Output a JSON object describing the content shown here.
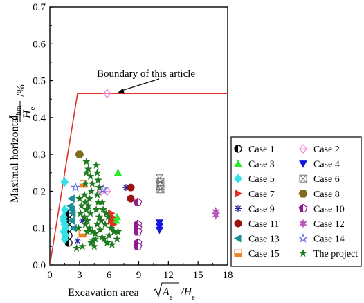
{
  "chart_data": {
    "type": "scatter",
    "title": "",
    "xlabel": "Excavation area √Aₑ/Hₑ",
    "xlabel_main": "Excavation area",
    "xlabel_sqrt_num": "A",
    "xlabel_sqrt_sub": "e",
    "xlabel_den": "H",
    "xlabel_den_sub": "e",
    "ylabel": "Maximal horizontal δhm/He /%",
    "ylabel_main": "Maximal horizontal",
    "ylabel_num": "δ",
    "ylabel_num_sub": "hm",
    "ylabel_den": "H",
    "ylabel_den_sub": "e",
    "ylabel_unit": "/%",
    "xlim": [
      0,
      18
    ],
    "ylim": [
      0,
      0.7
    ],
    "xticks": [
      "0",
      "3",
      "6",
      "9",
      "12",
      "15",
      "18"
    ],
    "yticks": [
      "0.0",
      "0.1",
      "0.2",
      "0.3",
      "0.4",
      "0.5",
      "0.6",
      "0.7"
    ],
    "grid": false,
    "legend_position": "right",
    "boundary": {
      "label": "Boundary of this article",
      "color": "#e0312b",
      "points": [
        [
          0,
          0
        ],
        [
          2.8,
          0.465
        ],
        [
          18,
          0.465
        ]
      ],
      "label_anchor": [
        6.8,
        0.465
      ]
    },
    "series": [
      {
        "name": "Case 1",
        "marker": "half-circle",
        "color": "#000000",
        "points": [
          [
            1.9,
            0.14
          ],
          [
            1.9,
            0.12
          ],
          [
            1.9,
            0.1
          ],
          [
            1.9,
            0.08
          ],
          [
            1.9,
            0.06
          ]
        ]
      },
      {
        "name": "Case 2",
        "marker": "diamond",
        "color": "#f08ad8",
        "points": [
          [
            5.8,
            0.465
          ],
          [
            5.2,
            0.2
          ],
          [
            5.8,
            0.2
          ]
        ]
      },
      {
        "name": "Case 3",
        "marker": "triangle-up",
        "color": "#2ee82e",
        "points": [
          [
            6.9,
            0.25
          ],
          [
            6.8,
            0.13
          ],
          [
            6.7,
            0.12
          ]
        ]
      },
      {
        "name": "Case 4",
        "marker": "triangle-down",
        "color": "#1515e0",
        "points": [
          [
            11.1,
            0.115
          ],
          [
            11.1,
            0.105
          ],
          [
            11.1,
            0.095
          ]
        ]
      },
      {
        "name": "Case 5",
        "marker": "diamond",
        "color": "#35e0e8",
        "points": [
          [
            1.5,
            0.225
          ],
          [
            1.5,
            0.15
          ],
          [
            1.4,
            0.13
          ],
          [
            1.4,
            0.12
          ],
          [
            1.5,
            0.11
          ],
          [
            1.6,
            0.1
          ],
          [
            1.4,
            0.09
          ],
          [
            1.6,
            0.08
          ],
          [
            1.5,
            0.07
          ]
        ]
      },
      {
        "name": "Case 6",
        "marker": "x-box",
        "color": "#707070",
        "points": [
          [
            11.1,
            0.235
          ],
          [
            11.2,
            0.225
          ],
          [
            11.1,
            0.215
          ],
          [
            11.2,
            0.205
          ]
        ]
      },
      {
        "name": "Case 7",
        "marker": "triangle-right",
        "color": "#e03020",
        "points": [
          [
            6.2,
            0.14
          ],
          [
            6.3,
            0.13
          ],
          [
            6.2,
            0.12
          ],
          [
            6.4,
            0.11
          ]
        ]
      },
      {
        "name": "Case 8",
        "marker": "hexagon",
        "color": "#7f6a1e",
        "points": [
          [
            3.0,
            0.3
          ]
        ]
      },
      {
        "name": "Case 9",
        "marker": "asterisk",
        "color": "#1a1a9e",
        "points": [
          [
            2.8,
            0.065
          ],
          [
            3.3,
            0.12
          ],
          [
            7.7,
            0.21
          ]
        ]
      },
      {
        "name": "Case 10",
        "marker": "pentagon-half",
        "color": "#8e1c8e",
        "points": [
          [
            8.9,
            0.17
          ],
          [
            8.9,
            0.11
          ],
          [
            8.9,
            0.1
          ],
          [
            8.9,
            0.09
          ],
          [
            8.9,
            0.06
          ],
          [
            8.9,
            0.05
          ]
        ]
      },
      {
        "name": "Case 11",
        "marker": "circle",
        "color": "#9a1212",
        "points": [
          [
            8.2,
            0.21
          ],
          [
            8.2,
            0.18
          ]
        ]
      },
      {
        "name": "Case 12",
        "marker": "star6",
        "color": "#b857b8",
        "points": [
          [
            16.8,
            0.145
          ],
          [
            16.8,
            0.135
          ]
        ]
      },
      {
        "name": "Case 13",
        "marker": "triangle-left",
        "color": "#1a8e99",
        "points": [
          [
            2.2,
            0.18
          ],
          [
            2.1,
            0.16
          ],
          [
            2.2,
            0.15
          ],
          [
            2.3,
            0.14
          ],
          [
            2.2,
            0.12
          ],
          [
            2.4,
            0.1
          ]
        ]
      },
      {
        "name": "Case 14",
        "marker": "star5-open",
        "color": "#5b6be8",
        "points": [
          [
            2.6,
            0.21
          ],
          [
            5.4,
            0.205
          ]
        ]
      },
      {
        "name": "Case 15",
        "marker": "square-half",
        "color": "#f08020",
        "points": [
          [
            3.4,
            0.22
          ],
          [
            3.3,
            0.085
          ]
        ]
      },
      {
        "name": "The project",
        "marker": "star5-solid",
        "color": "#1e7a1e",
        "points": [
          [
            3.7,
            0.28
          ],
          [
            3.9,
            0.26
          ],
          [
            4.1,
            0.24
          ],
          [
            4.3,
            0.22
          ],
          [
            4.2,
            0.2
          ],
          [
            4.0,
            0.18
          ],
          [
            3.9,
            0.16
          ],
          [
            4.1,
            0.14
          ],
          [
            3.8,
            0.12
          ],
          [
            4.0,
            0.1
          ],
          [
            4.3,
            0.09
          ],
          [
            4.6,
            0.07
          ],
          [
            4.2,
            0.06
          ],
          [
            3.7,
            0.25
          ],
          [
            3.6,
            0.22
          ],
          [
            3.5,
            0.19
          ],
          [
            3.6,
            0.17
          ],
          [
            3.7,
            0.15
          ],
          [
            3.5,
            0.13
          ],
          [
            3.6,
            0.11
          ],
          [
            3.8,
            0.09
          ],
          [
            4.7,
            0.27
          ],
          [
            4.8,
            0.25
          ],
          [
            4.9,
            0.23
          ],
          [
            5.0,
            0.21
          ],
          [
            4.8,
            0.19
          ],
          [
            4.9,
            0.17
          ],
          [
            4.7,
            0.15
          ],
          [
            5.0,
            0.13
          ],
          [
            4.8,
            0.11
          ],
          [
            5.1,
            0.095
          ],
          [
            4.6,
            0.085
          ],
          [
            5.3,
            0.075
          ],
          [
            5.5,
            0.07
          ],
          [
            5.2,
            0.12
          ],
          [
            5.6,
            0.11
          ],
          [
            5.4,
            0.15
          ],
          [
            5.7,
            0.14
          ],
          [
            5.3,
            0.17
          ],
          [
            5.9,
            0.13
          ],
          [
            6.2,
            0.1
          ],
          [
            6.5,
            0.09
          ],
          [
            6.0,
            0.08
          ],
          [
            6.8,
            0.07
          ],
          [
            2.9,
            0.1
          ],
          [
            3.1,
            0.14
          ],
          [
            3.2,
            0.16
          ],
          [
            3.0,
            0.18
          ],
          [
            4.4,
            0.065
          ],
          [
            5.8,
            0.06
          ],
          [
            6.3,
            0.055
          ],
          [
            6.9,
            0.09
          ],
          [
            4.5,
            0.05
          ],
          [
            3.3,
            0.05
          ],
          [
            2.7,
            0.045
          ]
        ]
      }
    ]
  }
}
